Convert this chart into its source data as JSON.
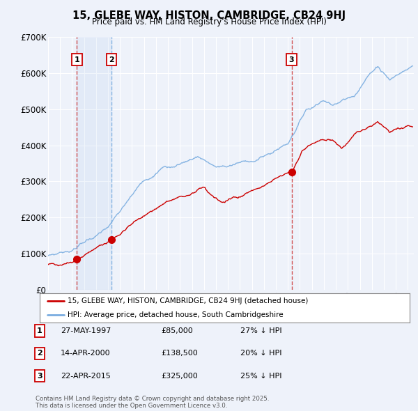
{
  "title": "15, GLEBE WAY, HISTON, CAMBRIDGE, CB24 9HJ",
  "subtitle": "Price paid vs. HM Land Registry's House Price Index (HPI)",
  "ylim": [
    0,
    700000
  ],
  "xlim_start": 1995.0,
  "xlim_end": 2025.5,
  "ytick_labels": [
    "£0",
    "£100K",
    "£200K",
    "£300K",
    "£400K",
    "£500K",
    "£600K",
    "£700K"
  ],
  "ytick_values": [
    0,
    100000,
    200000,
    300000,
    400000,
    500000,
    600000,
    700000
  ],
  "red_line_color": "#cc0000",
  "blue_line_color": "#7aade0",
  "background_color": "#eef2fa",
  "grid_color": "#ffffff",
  "sale_dates": [
    1997.41,
    2000.29,
    2015.31
  ],
  "sale_prices": [
    85000,
    138500,
    325000
  ],
  "sale_labels": [
    "1",
    "2",
    "3"
  ],
  "legend_red_label": "15, GLEBE WAY, HISTON, CAMBRIDGE, CB24 9HJ (detached house)",
  "legend_blue_label": "HPI: Average price, detached house, South Cambridgeshire",
  "table_rows": [
    {
      "num": "1",
      "date": "27-MAY-1997",
      "price": "£85,000",
      "hpi": "27% ↓ HPI"
    },
    {
      "num": "2",
      "date": "14-APR-2000",
      "price": "£138,500",
      "hpi": "20% ↓ HPI"
    },
    {
      "num": "3",
      "date": "22-APR-2015",
      "price": "£325,000",
      "hpi": "25% ↓ HPI"
    }
  ],
  "footnote": "Contains HM Land Registry data © Crown copyright and database right 2025.\nThis data is licensed under the Open Government Licence v3.0."
}
